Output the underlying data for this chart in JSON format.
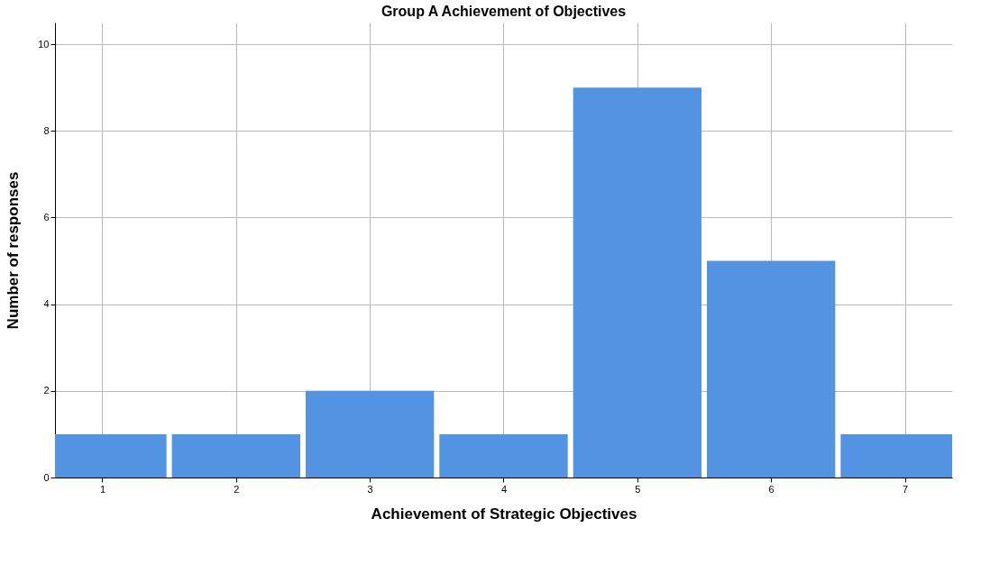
{
  "chart_data": {
    "type": "bar",
    "title": "Group A Achievement of Objectives",
    "xlabel": "Achievement of Strategic Objectives",
    "ylabel": "Number of responses",
    "x": [
      1,
      2,
      3,
      4,
      5,
      6,
      7
    ],
    "values": [
      1,
      1,
      2,
      1,
      9,
      5,
      1
    ],
    "color": "#5294e2",
    "xlim": [
      0.68,
      7.32
    ],
    "xticks": [
      1,
      2,
      3,
      4,
      5,
      6,
      7
    ],
    "ylim": [
      0,
      10.5
    ],
    "yticks": [
      0,
      2,
      4,
      6,
      8,
      10
    ],
    "grid": true
  }
}
